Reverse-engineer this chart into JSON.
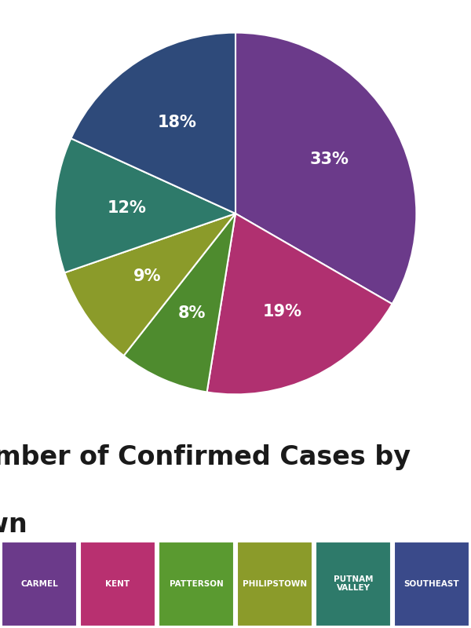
{
  "title_line1": "Number of Confirmed Cases by",
  "title_line2": "Town",
  "slices": [
    33,
    19,
    8,
    9,
    12,
    18
  ],
  "colors": [
    "#6B3A8A",
    "#B03070",
    "#4E8B2E",
    "#8B9B2A",
    "#2E7A6A",
    "#2E4A7A"
  ],
  "pct_labels": [
    "33%",
    "19%",
    "8%",
    "9%",
    "12%",
    "18%"
  ],
  "legend_colors": [
    "#6B3A8A",
    "#B83070",
    "#5A9A30",
    "#8B9B2A",
    "#2E7A6A",
    "#3A4A8A"
  ],
  "legend_labels": [
    "CARMEL",
    "KENT",
    "PATTERSON",
    "PHILIPSTOWN",
    "PUTNAM\nVALLEY",
    "SOUTHEAST"
  ],
  "background_color": "#FFFFFF",
  "text_color": "#1A1A1A",
  "pct_color": "#FFFFFF",
  "startangle": 90
}
